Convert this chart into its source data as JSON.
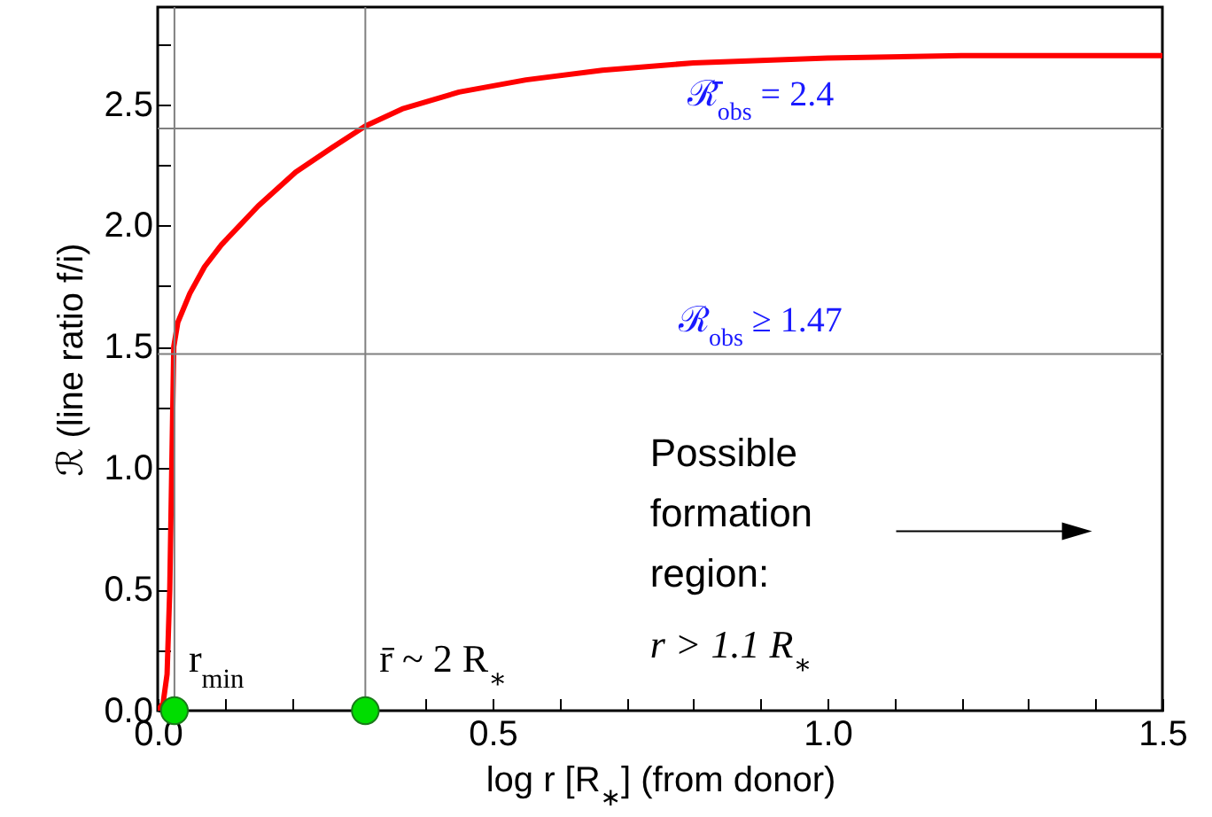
{
  "chart_data": {
    "type": "line",
    "xlabel": "log r [R$_{∗}$] (from donor)",
    "ylabel": "ℛ  (line ratio f/i)",
    "xlim": [
      0,
      1.5
    ],
    "ylim": [
      0,
      2.9
    ],
    "xticks": [
      {
        "value": 0,
        "label": "0.0"
      },
      {
        "value": 0.1,
        "label": null
      },
      {
        "value": 0.2,
        "label": null
      },
      {
        "value": 0.3,
        "label": null
      },
      {
        "value": 0.4,
        "label": null
      },
      {
        "value": 0.5,
        "label": "0.5"
      },
      {
        "value": 0.6,
        "label": null
      },
      {
        "value": 0.7,
        "label": null
      },
      {
        "value": 0.8,
        "label": null
      },
      {
        "value": 0.9,
        "label": null
      },
      {
        "value": 1,
        "label": "1.0"
      },
      {
        "value": 1.1,
        "label": null
      },
      {
        "value": 1.2,
        "label": null
      },
      {
        "value": 1.3,
        "label": null
      },
      {
        "value": 1.4,
        "label": null
      },
      {
        "value": 1.5,
        "label": "1.5"
      }
    ],
    "yticks": [
      {
        "value": 0,
        "label": "0.0"
      },
      {
        "value": 0.25,
        "label": null
      },
      {
        "value": 0.5,
        "label": "0.5"
      },
      {
        "value": 0.75,
        "label": null
      },
      {
        "value": 1,
        "label": "1.0"
      },
      {
        "value": 1.25,
        "label": null
      },
      {
        "value": 1.5,
        "label": "1.5"
      },
      {
        "value": 1.75,
        "label": null
      },
      {
        "value": 2,
        "label": "2.0"
      },
      {
        "value": 2.25,
        "label": null
      },
      {
        "value": 2.5,
        "label": "2.5"
      },
      {
        "value": 2.75,
        "label": null
      }
    ],
    "marker": "none",
    "line_style": "solid",
    "series": [
      {
        "color": "#ff0000",
        "x": [
          0,
          0.008,
          0.014,
          0.018,
          0.021,
          0.024,
          0.03,
          0.048,
          0.07,
          0.095,
          0.15,
          0.206,
          0.26,
          0.31,
          0.365,
          0.45,
          0.55,
          0.664,
          0.8,
          1.0,
          1.2,
          1.5
        ],
        "values": [
          0,
          0.03,
          0.15,
          0.5,
          1.0,
          1.5,
          1.6,
          1.72,
          1.83,
          1.92,
          2.08,
          2.22,
          2.32,
          2.41,
          2.48,
          2.55,
          2.6,
          2.64,
          2.67,
          2.69,
          2.7,
          2.7
        ]
      },
      {
        "type": "scatter",
        "color": "#00dd00",
        "marker": "circle",
        "x": [
          0.025,
          0.31
        ],
        "values": [
          0,
          0
        ]
      }
    ],
    "ref_lines": [
      {
        "axis": "y",
        "value": 2.4,
        "label": "ℛ̄$_{obs}$ = 2.4",
        "color": "#808080"
      },
      {
        "axis": "y",
        "value": 1.47,
        "label": "ℛ$_{obs}$ ≥ 1.47",
        "color": "#808080"
      },
      {
        "axis": "x",
        "value": 0.31,
        "color": "#808080"
      },
      {
        "axis": "x",
        "value": 0.025,
        "color": "#808080"
      }
    ],
    "annotations": [
      {
        "text": "r$_{min}$",
        "x": 0.025,
        "y": 0
      },
      {
        "text": "r̄ ~ 2 R$_{∗}$",
        "x": 0.31,
        "y": 0
      },
      "Possible formation region:",
      "r > 1.1 R$_{∗}$"
    ]
  }
}
